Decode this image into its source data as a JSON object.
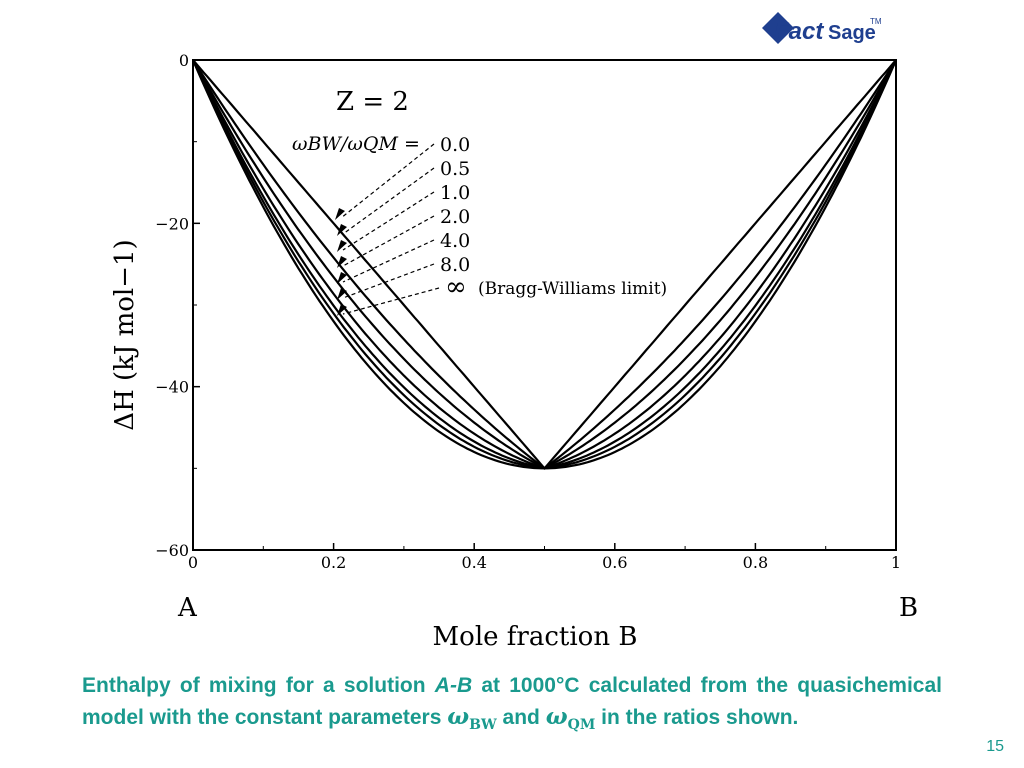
{
  "logo": {
    "text_main": "Fact",
    "text_sub": "Sage",
    "tm": "TM",
    "color": "#1f3f8f"
  },
  "chart_data": {
    "type": "line",
    "xlim": [
      0,
      1
    ],
    "ylim": [
      -60,
      0
    ],
    "x_ticks": [
      "0",
      "0.2",
      "0.4",
      "0.6",
      "0.8",
      "1"
    ],
    "y_ticks": [
      "0",
      "−20",
      "−40",
      "−60"
    ],
    "xlabel": "Mole fraction B",
    "ylabel": "ΔH (kJ mol−1)",
    "end_labels": {
      "left": "A",
      "right": "B"
    },
    "annotation": {
      "title": "Z = 2",
      "ratio_label": "ωBW/ωQM =",
      "ratios": [
        "0.0",
        "0.5",
        "1.0",
        "2.0",
        "4.0",
        "8.0",
        "∞"
      ],
      "bw_note": "(Bragg-Williams limit)"
    },
    "series": [
      {
        "ratio": 0.0,
        "sharpness": 0.0
      },
      {
        "ratio": 0.5,
        "sharpness": 0.35
      },
      {
        "ratio": 1.0,
        "sharpness": 0.55
      },
      {
        "ratio": 2.0,
        "sharpness": 0.72
      },
      {
        "ratio": 4.0,
        "sharpness": 0.84
      },
      {
        "ratio": 8.0,
        "sharpness": 0.92
      },
      {
        "ratio": "∞",
        "sharpness": 1.0
      }
    ],
    "minimum": {
      "x": 0.5,
      "y": -50
    }
  },
  "caption": {
    "part1": "Enthalpy of mixing for a solution ",
    "A": "A",
    "dash": "-",
    "B": "B",
    "part2": " at 1000°C calculated from the quasichemical model with the constant parameters ",
    "omega": "ω",
    "bw": "BW",
    "and": " and ",
    "qm": "QM",
    "part3": " in the ratios shown."
  },
  "page_number": "15"
}
